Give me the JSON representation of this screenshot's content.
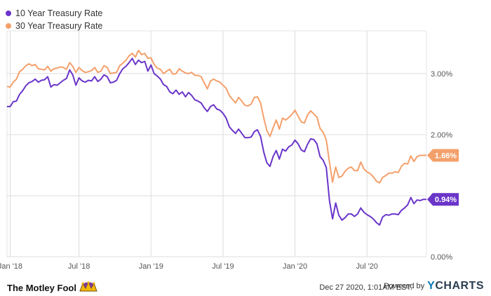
{
  "legend": {
    "items": [
      {
        "label": "10 Year Treasury Rate",
        "color": "#6a35c9"
      },
      {
        "label": "30 Year Treasury Rate",
        "color": "#f4a06b"
      }
    ]
  },
  "footer": {
    "brand": "The Motley Fool",
    "timestamp": "Dec 27 2020, 1:01AM EST.",
    "powered_by": "Powered by",
    "provider_y": "Y",
    "provider_rest": "CHARTS"
  },
  "chart_data": {
    "type": "line",
    "title": "",
    "xlabel": "",
    "ylabel": "",
    "x_ticks": [
      "Jan '18",
      "Jul '18",
      "Jan '19",
      "Jul '19",
      "Jan '20",
      "Jul '20"
    ],
    "y_ticks": [
      "0.00%",
      "1.00%",
      "2.00%",
      "3.00%"
    ],
    "ylim": [
      0,
      3.7
    ],
    "grid": true,
    "legend_position": "top-left",
    "series": [
      {
        "name": "10 Year Treasury Rate",
        "color": "#6a35c9",
        "last_label": "0.94%",
        "values": [
          2.46,
          2.46,
          2.54,
          2.55,
          2.66,
          2.72,
          2.8,
          2.85,
          2.87,
          2.91,
          2.86,
          2.89,
          2.9,
          2.95,
          2.78,
          2.82,
          2.81,
          2.85,
          2.89,
          2.92,
          3.06,
          2.98,
          2.81,
          2.93,
          2.88,
          2.86,
          2.89,
          2.88,
          2.95,
          2.87,
          2.91,
          2.98,
          2.95,
          2.85,
          2.86,
          2.89,
          3.0,
          3.08,
          3.12,
          3.18,
          3.25,
          3.15,
          3.22,
          3.18,
          3.2,
          3.04,
          3.14,
          3.0,
          2.96,
          2.91,
          2.82,
          2.79,
          2.7,
          2.67,
          2.73,
          2.66,
          2.7,
          2.62,
          2.69,
          2.64,
          2.57,
          2.55,
          2.52,
          2.44,
          2.38,
          2.46,
          2.49,
          2.42,
          2.4,
          2.35,
          2.27,
          2.13,
          2.07,
          2.02,
          2.09,
          2.02,
          1.95,
          1.95,
          1.96,
          2.05,
          2.08,
          1.97,
          1.72,
          1.54,
          1.48,
          1.64,
          1.74,
          1.6,
          1.76,
          1.73,
          1.8,
          1.83,
          1.91,
          1.85,
          1.75,
          1.72,
          1.84,
          1.93,
          1.92,
          1.85,
          1.64,
          1.58,
          1.46,
          0.92,
          0.62,
          0.88,
          0.68,
          0.6,
          0.64,
          0.7,
          0.7,
          0.66,
          0.7,
          0.8,
          0.73,
          0.69,
          0.66,
          0.62,
          0.56,
          0.52,
          0.65,
          0.69,
          0.68,
          0.7,
          0.7,
          0.69,
          0.76,
          0.8,
          0.85,
          0.97,
          0.87,
          0.93,
          0.92,
          0.94,
          0.94
        ]
      },
      {
        "name": "30 Year Treasury Rate",
        "color": "#f4a06b",
        "last_label": "1.66%",
        "values": [
          2.79,
          2.78,
          2.86,
          2.91,
          3.03,
          3.07,
          3.13,
          3.16,
          3.13,
          3.15,
          3.08,
          3.07,
          3.06,
          3.12,
          3.04,
          3.08,
          3.09,
          3.11,
          3.1,
          3.07,
          3.18,
          3.12,
          3.02,
          3.1,
          3.05,
          3.02,
          3.03,
          3.05,
          3.1,
          3.02,
          3.04,
          3.13,
          3.1,
          3.0,
          3.01,
          3.02,
          3.13,
          3.17,
          3.22,
          3.29,
          3.33,
          3.27,
          3.38,
          3.31,
          3.33,
          3.25,
          3.26,
          3.15,
          3.09,
          3.07,
          3.0,
          3.04,
          3.07,
          2.99,
          3.0,
          3.08,
          3.04,
          3.01,
          3.0,
          3.02,
          2.97,
          2.97,
          2.95,
          2.85,
          2.75,
          2.88,
          2.91,
          2.88,
          2.86,
          2.81,
          2.76,
          2.64,
          2.58,
          2.52,
          2.61,
          2.55,
          2.48,
          2.47,
          2.5,
          2.61,
          2.62,
          2.52,
          2.28,
          2.07,
          1.97,
          2.11,
          2.24,
          2.09,
          2.27,
          2.24,
          2.28,
          2.33,
          2.4,
          2.3,
          2.21,
          2.19,
          2.32,
          2.39,
          2.34,
          2.29,
          2.1,
          2.04,
          1.91,
          1.55,
          1.22,
          1.47,
          1.3,
          1.32,
          1.4,
          1.45,
          1.47,
          1.41,
          1.41,
          1.55,
          1.44,
          1.39,
          1.36,
          1.31,
          1.24,
          1.21,
          1.3,
          1.33,
          1.37,
          1.37,
          1.39,
          1.38,
          1.48,
          1.53,
          1.52,
          1.65,
          1.56,
          1.64,
          1.66,
          1.66,
          1.66
        ]
      }
    ]
  }
}
